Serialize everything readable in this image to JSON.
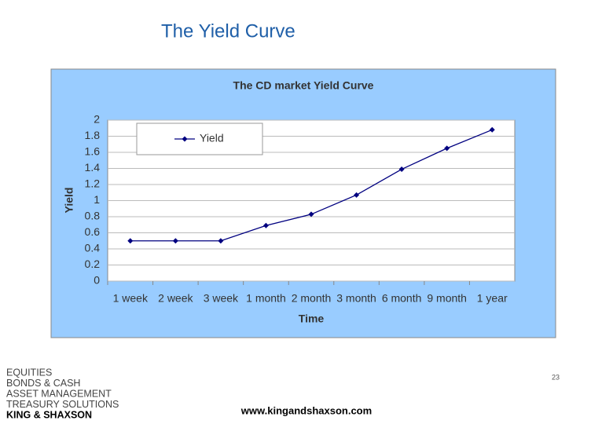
{
  "slide": {
    "title": "The Yield Curve",
    "page_number": "23",
    "url": "www.kingandshaxson.com",
    "footer_lines": [
      "EQUITIES",
      "BONDS & CASH",
      "ASSET MANAGEMENT",
      "TREASURY SOLUTIONS",
      "KING & SHAXSON"
    ]
  },
  "chart_data": {
    "type": "line",
    "title": "The CD market Yield Curve",
    "x_label": "Time",
    "y_label": "Yield",
    "categories": [
      "1 week",
      "2 week",
      "3 week",
      "1 month",
      "2 month",
      "3 month",
      "6 month",
      "9 month",
      "1 year"
    ],
    "series": [
      {
        "name": "Yield",
        "color": "#000080",
        "values": [
          0.5,
          0.5,
          0.5,
          0.69,
          0.83,
          1.07,
          1.39,
          1.65,
          1.88
        ]
      }
    ],
    "ylim": [
      0,
      2
    ],
    "yticks": [
      0,
      0.2,
      0.4,
      0.6,
      0.8,
      1,
      1.2,
      1.4,
      1.6,
      1.8,
      2
    ],
    "grid": true,
    "legend": "top-left"
  }
}
